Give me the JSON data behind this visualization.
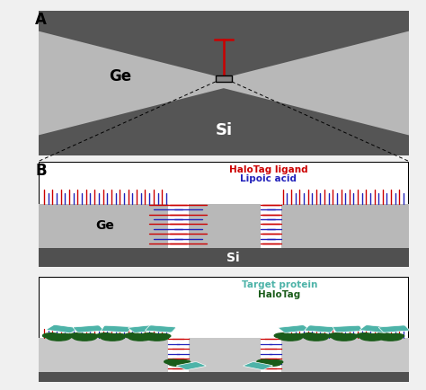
{
  "bg_color": "#f0f0f0",
  "panel_bg": "#ffffff",
  "dark_gray": "#555555",
  "ge_color": "#b8b8b8",
  "si_color": "#707070",
  "si_dark": "#505050",
  "red_color": "#cc0000",
  "blue_color": "#2222bb",
  "teal_color": "#4db3a8",
  "dark_green": "#1a5c1a",
  "white": "#ffffff",
  "black": "#000000",
  "label_A": "A",
  "label_B": "B",
  "label_Ge": "Ge",
  "label_Si": "Si",
  "label_halotag_ligand": "HaloTag ligand",
  "label_lipoic_acid": "Lipoic acid",
  "label_target_protein": "Target protein",
  "label_halotag": "HaloTag"
}
